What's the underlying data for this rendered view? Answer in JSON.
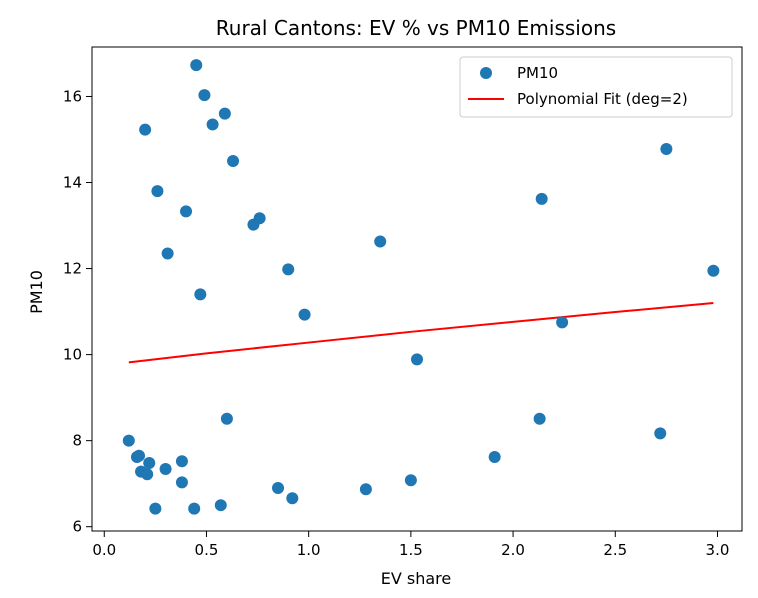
{
  "chart_data": {
    "type": "scatter",
    "title": "Rural Cantons: EV % vs PM10 Emissions",
    "xlabel": "EV share",
    "ylabel": "PM10",
    "xlim": [
      -0.06,
      3.12
    ],
    "ylim": [
      5.9,
      17.15
    ],
    "xticks": [
      "0.0",
      "0.5",
      "1.0",
      "1.5",
      "2.0",
      "2.5",
      "3.0"
    ],
    "xtick_values": [
      0.0,
      0.5,
      1.0,
      1.5,
      2.0,
      2.5,
      3.0
    ],
    "yticks": [
      "6",
      "8",
      "10",
      "12",
      "14",
      "16"
    ],
    "ytick_values": [
      6,
      8,
      10,
      12,
      14,
      16
    ],
    "grid": false,
    "legend_position": "top-right",
    "series": [
      {
        "name": "PM10",
        "kind": "scatter",
        "color": "#1f77b4",
        "points": [
          [
            0.12,
            8.0
          ],
          [
            0.16,
            7.62
          ],
          [
            0.17,
            7.65
          ],
          [
            0.18,
            7.28
          ],
          [
            0.21,
            7.22
          ],
          [
            0.22,
            7.48
          ],
          [
            0.25,
            6.42
          ],
          [
            0.2,
            15.23
          ],
          [
            0.26,
            13.8
          ],
          [
            0.31,
            12.35
          ],
          [
            0.3,
            7.34
          ],
          [
            0.38,
            7.52
          ],
          [
            0.38,
            7.03
          ],
          [
            0.4,
            13.33
          ],
          [
            0.44,
            6.42
          ],
          [
            0.45,
            16.73
          ],
          [
            0.47,
            11.4
          ],
          [
            0.49,
            16.03
          ],
          [
            0.53,
            15.35
          ],
          [
            0.57,
            6.5
          ],
          [
            0.59,
            15.6
          ],
          [
            0.6,
            8.51
          ],
          [
            0.63,
            14.5
          ],
          [
            0.73,
            13.02
          ],
          [
            0.76,
            13.17
          ],
          [
            0.85,
            6.9
          ],
          [
            0.9,
            11.98
          ],
          [
            0.92,
            6.66
          ],
          [
            0.98,
            10.93
          ],
          [
            1.28,
            6.87
          ],
          [
            1.35,
            12.63
          ],
          [
            1.5,
            7.08
          ],
          [
            1.53,
            9.89
          ],
          [
            1.91,
            7.62
          ],
          [
            2.13,
            8.51
          ],
          [
            2.14,
            13.62
          ],
          [
            2.24,
            10.75
          ],
          [
            2.72,
            8.17
          ],
          [
            2.75,
            14.78
          ],
          [
            2.98,
            11.95
          ]
        ]
      },
      {
        "name": "Polynomial Fit (deg=2)",
        "kind": "line",
        "color": "#ff0000",
        "points": [
          [
            0.12,
            9.82
          ],
          [
            0.5,
            10.03
          ],
          [
            1.0,
            10.28
          ],
          [
            1.5,
            10.53
          ],
          [
            2.0,
            10.76
          ],
          [
            2.5,
            10.99
          ],
          [
            2.98,
            11.2
          ]
        ]
      }
    ]
  }
}
